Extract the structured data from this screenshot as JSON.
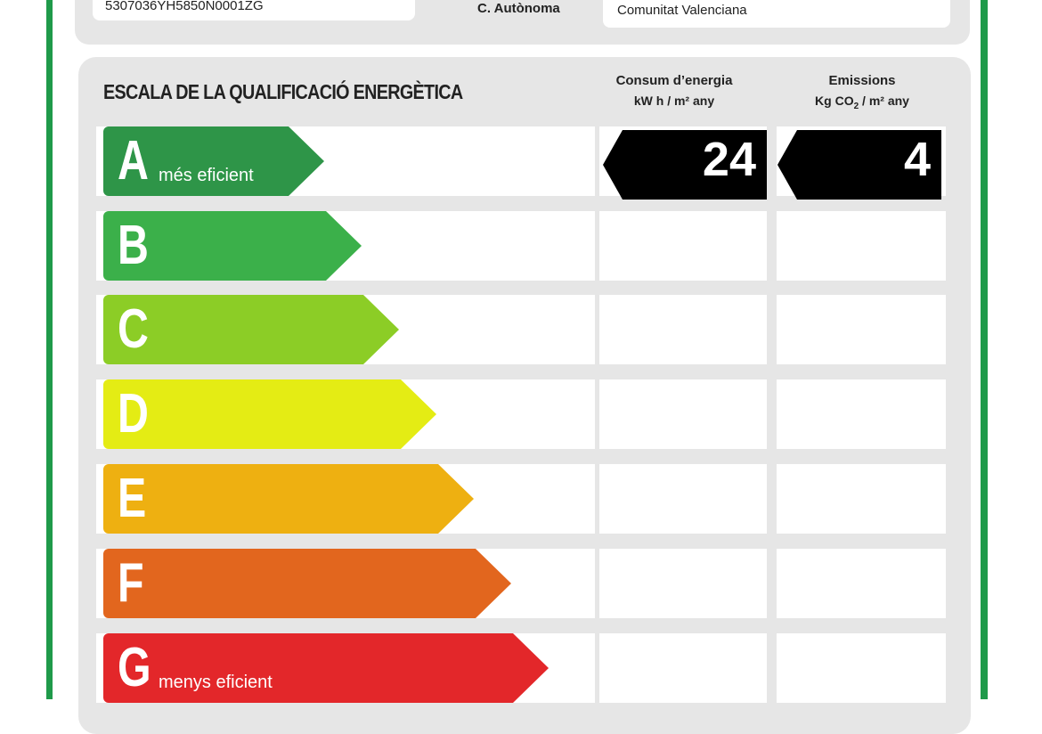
{
  "header": {
    "cadastral_ref": "5307036YH5850N0001ZG",
    "region_label": "C. Autònoma",
    "region_value": "Comunitat Valenciana"
  },
  "scale": {
    "title": "ESCALA DE LA QUALIFICACIÓ ENERGÈTICA",
    "consumption_header": "Consum d’energia",
    "consumption_unit": "kW h / m² any",
    "emissions_header": "Emissions",
    "emissions_unit_pre": "Kg CO",
    "emissions_unit_sub": "2",
    "emissions_unit_post": " / m² any",
    "classes": [
      {
        "letter": "A",
        "label": "més eficient",
        "color": "#2e9548"
      },
      {
        "letter": "B",
        "label": "",
        "color": "#3bb04a"
      },
      {
        "letter": "C",
        "label": "",
        "color": "#8ccd26"
      },
      {
        "letter": "D",
        "label": "",
        "color": "#e4ec14"
      },
      {
        "letter": "E",
        "label": "",
        "color": "#eeb011"
      },
      {
        "letter": "F",
        "label": "",
        "color": "#e2661e"
      },
      {
        "letter": "G",
        "label": "menys eficient",
        "color": "#e3272a"
      }
    ]
  },
  "rating": {
    "class": "A",
    "consumption_value": "24",
    "emissions_value": "4"
  }
}
